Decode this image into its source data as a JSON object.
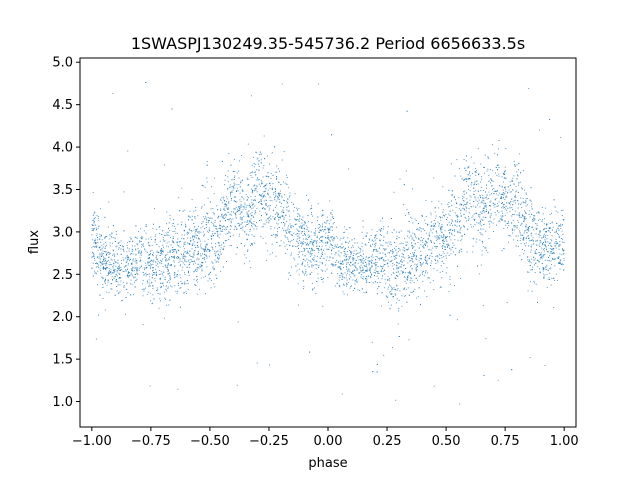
{
  "chart_data": {
    "type": "scatter",
    "title": "1SWASPJ130249.35-545736.2 Period 6656633.5s",
    "xlabel": "phase",
    "ylabel": "flux",
    "xlim": [
      -1.05,
      1.05
    ],
    "ylim": [
      0.7,
      5.05
    ],
    "x_ticks": [
      -1.0,
      -0.75,
      -0.5,
      -0.25,
      0.0,
      0.25,
      0.5,
      0.75,
      1.0
    ],
    "x_tick_labels": [
      "−1.00",
      "−0.75",
      "−0.50",
      "−0.25",
      "0.00",
      "0.25",
      "0.50",
      "0.75",
      "1.00"
    ],
    "y_ticks": [
      1.0,
      1.5,
      2.0,
      2.5,
      3.0,
      3.5,
      4.0,
      4.5,
      5.0
    ],
    "y_tick_labels": [
      "1.0",
      "1.5",
      "2.0",
      "2.5",
      "3.0",
      "3.5",
      "4.0",
      "4.5",
      "5.0"
    ],
    "grid": false,
    "legend": "none",
    "point_color": "#1f77b4",
    "series": [
      {
        "profile": {
          "phase": [
            0.0,
            0.05,
            0.1,
            0.15,
            0.2,
            0.25,
            0.3,
            0.35,
            0.4,
            0.45,
            0.5,
            0.55,
            0.6,
            0.65,
            0.7,
            0.75,
            0.8,
            0.85,
            0.9,
            0.95,
            1.0
          ],
          "flux_median": [
            2.9,
            2.65,
            2.6,
            2.62,
            2.7,
            2.62,
            2.6,
            2.75,
            2.8,
            2.85,
            2.9,
            3.05,
            3.4,
            3.2,
            3.5,
            3.35,
            3.3,
            3.0,
            2.85,
            2.8,
            2.85
          ],
          "flux_spread": [
            0.35,
            0.3,
            0.3,
            0.3,
            0.3,
            0.35,
            0.4,
            0.4,
            0.4,
            0.4,
            0.45,
            0.45,
            0.45,
            0.45,
            0.45,
            0.4,
            0.45,
            0.4,
            0.35,
            0.35,
            0.35
          ]
        },
        "outlier_range": [
          0.9,
          4.85
        ]
      }
    ]
  }
}
